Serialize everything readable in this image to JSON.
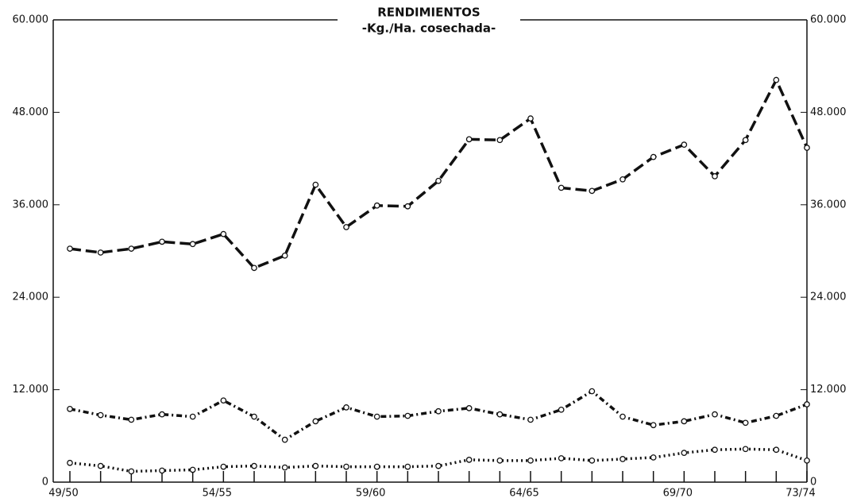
{
  "chart_data": {
    "type": "line",
    "title": "RENDIMIENTOS",
    "subtitle": "-Kg./Ha. cosechada-",
    "categories": [
      "49/50",
      null,
      null,
      null,
      null,
      "54/55",
      null,
      null,
      null,
      null,
      "59/60",
      null,
      null,
      null,
      null,
      "64/65",
      null,
      null,
      null,
      null,
      "69/70",
      null,
      null,
      null,
      "73/74"
    ],
    "series": [
      {
        "color": "#111111",
        "linestyle": "dashed",
        "values": [
          30300,
          29800,
          30300,
          31200,
          30900,
          32200,
          27800,
          29400,
          38600,
          33100,
          35900,
          35800,
          39100,
          44500,
          44400,
          47200,
          38200,
          37800,
          39300,
          42200,
          43800,
          39700,
          44400,
          52200,
          43400
        ]
      },
      {
        "color": "#111111",
        "linestyle": "dashdot",
        "values": [
          9500,
          8700,
          8100,
          8800,
          8500,
          10600,
          8500,
          5500,
          7900,
          9700,
          8500,
          8600,
          9200,
          9600,
          8800,
          8100,
          9400,
          11800,
          8500,
          7400,
          7900,
          8800,
          7700,
          8600,
          10100
        ]
      },
      {
        "color": "#111111",
        "linestyle": "dotted",
        "values": [
          2500,
          2100,
          1400,
          1500,
          1600,
          2000,
          2100,
          1900,
          2100,
          2000,
          2000,
          2000,
          2100,
          2900,
          2800,
          2800,
          3100,
          2800,
          3000,
          3200,
          3800,
          4200,
          4300,
          4200,
          2800
        ]
      }
    ],
    "ylim": [
      0,
      60000
    ],
    "yticks": [
      0,
      {
        "value": 12000,
        "label": "12.000"
      },
      {
        "value": 24000,
        "label": "24.000"
      },
      {
        "value": 36000,
        "label": "36.000"
      },
      {
        "value": 48000,
        "label": "48.000"
      },
      {
        "value": 60000,
        "label": "60.000"
      }
    ]
  }
}
